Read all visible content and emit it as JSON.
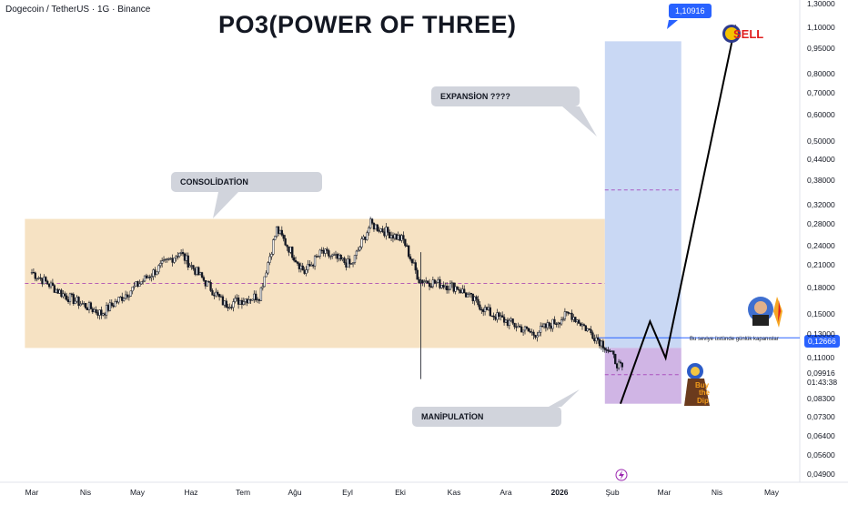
{
  "header": {
    "symbol_line": "Dogecoin / TetherUS · 1G · Binance"
  },
  "title": "PO3(POWER OF THREE)",
  "callouts": {
    "consolidation": "CONSOLİDATİON",
    "expansion": "EXPANSİON ????",
    "manipulation": "MANİPULATİON"
  },
  "target_tag": "1,10916",
  "price_tag": {
    "price": "0,09916",
    "countdown": "01:43:38"
  },
  "level_tag": "0,12666",
  "level_note": "Bu seviye üstünde günlük kapanıslar",
  "sticker_texts": {
    "sell": "SELL",
    "buy_the_dip": "Buy the Dip"
  },
  "colors": {
    "consolidation_zone": "#f5dfbd",
    "expansion_zone": "#c3d4f3",
    "manipulation_zone": "#c8a8e0",
    "target_tag": "#2962ff",
    "level_line": "#2962ff",
    "midline": "#9c27b0",
    "candles": "#131722"
  },
  "chart_data": {
    "type": "candlestick",
    "symbol": "DOGE/USDT",
    "timeframe": "1G",
    "exchange": "Binance",
    "y_scale": "log",
    "ylim": [
      0.049,
      1.3
    ],
    "y_ticks": [
      "1,30000",
      "1,10000",
      "0,95000",
      "0,80000",
      "0,70000",
      "0,60000",
      "0,50000",
      "0,44000",
      "0,38000",
      "0,32000",
      "0,28000",
      "0,24000",
      "0,21000",
      "0,18000",
      "0,15000",
      "0,13000",
      "0,11000",
      "0,09916",
      "0,08300",
      "0,07300",
      "0,06400",
      "0,05600",
      "0,04900"
    ],
    "x_ticks": [
      "Mar",
      "Nis",
      "May",
      "Haz",
      "Tem",
      "Ağu",
      "Eyl",
      "Eki",
      "Kas",
      "Ara",
      "2026",
      "Şub",
      "Mar",
      "Nis",
      "May"
    ],
    "approx_close_path": [
      {
        "date": "2025-03-01",
        "close": 0.2
      },
      {
        "date": "2025-03-20",
        "close": 0.17
      },
      {
        "date": "2025-04-10",
        "close": 0.15
      },
      {
        "date": "2025-05-10",
        "close": 0.2
      },
      {
        "date": "2025-05-25",
        "close": 0.23
      },
      {
        "date": "2025-06-20",
        "close": 0.16
      },
      {
        "date": "2025-07-10",
        "close": 0.17
      },
      {
        "date": "2025-07-20",
        "close": 0.27
      },
      {
        "date": "2025-08-05",
        "close": 0.2
      },
      {
        "date": "2025-08-15",
        "close": 0.23
      },
      {
        "date": "2025-09-01",
        "close": 0.21
      },
      {
        "date": "2025-09-12",
        "close": 0.28
      },
      {
        "date": "2025-10-01",
        "close": 0.25
      },
      {
        "date": "2025-10-10",
        "close": 0.19
      },
      {
        "date": "2025-11-01",
        "close": 0.18
      },
      {
        "date": "2025-11-20",
        "close": 0.15
      },
      {
        "date": "2025-12-15",
        "close": 0.13
      },
      {
        "date": "2026-01-05",
        "close": 0.15
      },
      {
        "date": "2026-01-25",
        "close": 0.12
      },
      {
        "date": "2026-02-05",
        "close": 0.09916
      }
    ],
    "zones": [
      {
        "name": "consolidation",
        "from": "2025-02-25",
        "to": "2026-01-25",
        "low": 0.118,
        "high": 0.29,
        "mid": 0.185
      },
      {
        "name": "expansion",
        "from": "2026-01-25",
        "to": "2026-03-10",
        "low": 0.118,
        "high": 1.0,
        "mid": 0.355
      },
      {
        "name": "manipulation",
        "from": "2026-01-25",
        "to": "2026-03-10",
        "low": 0.08,
        "high": 0.118,
        "mid": 0.098
      }
    ],
    "projection": [
      {
        "date": "2026-02-03",
        "price": 0.08
      },
      {
        "date": "2026-02-20",
        "price": 0.142
      },
      {
        "date": "2026-03-01",
        "price": 0.11
      },
      {
        "date": "2026-04-10",
        "price": 1.10916
      }
    ],
    "level": 0.12666,
    "target": 1.10916
  }
}
